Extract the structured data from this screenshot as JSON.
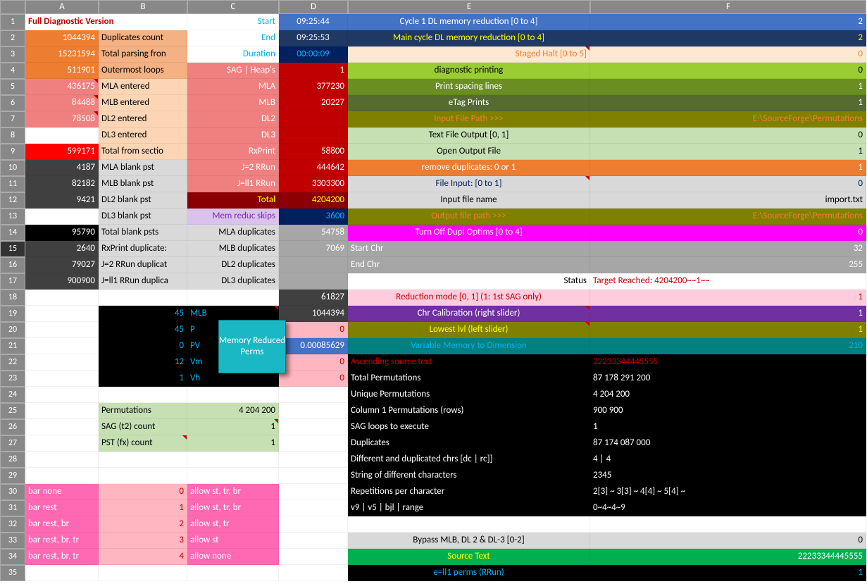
{
  "cols": [
    "",
    "A",
    "B",
    "C",
    "D",
    "E",
    "F"
  ],
  "popup": "Memory Reduced Perms",
  "colors": {
    "orange": "#ed7d31",
    "orangeLt": "#f4b183",
    "orangeTan": "#ffe8d1",
    "salmon": "#f08080",
    "salmonLt": "#fcd5b4",
    "red": "#c00000",
    "redBright": "#ff0000",
    "darkRed": "#8b0000",
    "olive": "#808000",
    "oliveLt": "#9acd32",
    "oliveMed": "#6b8e23",
    "oliveDk": "#556b2f",
    "greenLt": "#c6e0b4",
    "green": "#00b050",
    "blue": "#4472c4",
    "blueDk": "#1f3864",
    "navy": "#002060",
    "cyan": "#00b0f0",
    "teal": "#008080",
    "purple": "#7030a0",
    "purpleLt": "#d9c2ec",
    "magenta": "#ff00ff",
    "pink": "#ffb6c1",
    "pinkHot": "#ff69b4",
    "pinkLt": "#ffccdd",
    "black": "#000000",
    "grayDk": "#404040",
    "grayLt": "#d9d9d9",
    "grayMd": "#a6a6a6",
    "white": "#ffffff",
    "yellow": "#ffff00",
    "tan": "#bfbfbf"
  },
  "rows": [
    [
      {
        "t": "Full Diagnostic Version",
        "bg": "white",
        "fg": "red",
        "b": 1,
        "span": 2
      },
      null,
      {
        "t": "Start",
        "bg": "white",
        "fg": "cyan",
        "a": "r"
      },
      {
        "t": "09:25:44",
        "bg": "blue",
        "fg": "white",
        "a": "c"
      },
      {
        "t": "Cycle 1 DL memory reduction [0 to 4]",
        "bg": "blue",
        "fg": "white",
        "a": "c"
      },
      {
        "t": "2",
        "bg": "blue",
        "fg": "white",
        "a": "r"
      }
    ],
    [
      {
        "t": "1044394",
        "bg": "orange",
        "fg": "white",
        "a": "r"
      },
      {
        "t": "Duplicates count",
        "bg": "orangeLt"
      },
      {
        "t": "End",
        "bg": "white",
        "fg": "cyan",
        "a": "r"
      },
      {
        "t": "09:25:53",
        "bg": "blueDk",
        "fg": "white",
        "a": "c"
      },
      {
        "t": "Main cycle DL memory reduction [0 to 4]",
        "bg": "blueDk",
        "fg": "yellow",
        "a": "c"
      },
      {
        "t": "2",
        "bg": "blueDk",
        "fg": "yellow",
        "a": "r"
      }
    ],
    [
      {
        "t": "15231594",
        "bg": "orange",
        "fg": "white",
        "a": "r"
      },
      {
        "t": "Total parsing fron",
        "bg": "orangeLt"
      },
      {
        "t": "Duration",
        "bg": "white",
        "fg": "cyan",
        "a": "r"
      },
      {
        "t": "00:00:09",
        "bg": "navy",
        "fg": "cyan",
        "a": "c"
      },
      {
        "t": "Staged Halt [0 to 5]",
        "bg": "orangeTan",
        "fg": "orange",
        "a": "r",
        "tri": 1
      },
      {
        "t": "0",
        "bg": "orangeTan",
        "fg": "orange",
        "a": "r"
      }
    ],
    [
      {
        "t": "511901",
        "bg": "orange",
        "fg": "white",
        "a": "r"
      },
      {
        "t": "Outermost loops",
        "bg": "orangeLt"
      },
      {
        "t": "SAG | Heap's",
        "bg": "salmon",
        "fg": "white",
        "a": "r"
      },
      {
        "t": "1",
        "bg": "red",
        "fg": "white",
        "a": "r"
      },
      {
        "t": "diagnostic printing",
        "bg": "oliveLt",
        "fg": "black",
        "a": "c"
      },
      {
        "t": "0",
        "bg": "oliveLt",
        "a": "r"
      }
    ],
    [
      {
        "t": "436175",
        "bg": "salmon",
        "fg": "white",
        "a": "r",
        "tri": 1
      },
      {
        "t": "MLA entered",
        "bg": "salmonLt"
      },
      {
        "t": "MLA",
        "bg": "salmon",
        "fg": "white",
        "a": "r"
      },
      {
        "t": "377230",
        "bg": "red",
        "fg": "white",
        "a": "r"
      },
      {
        "t": "Print spacing lines",
        "bg": "oliveMed",
        "fg": "white",
        "a": "c"
      },
      {
        "t": "1",
        "bg": "oliveMed",
        "fg": "white",
        "a": "r"
      }
    ],
    [
      {
        "t": "84488",
        "bg": "salmon",
        "fg": "white",
        "a": "r",
        "tri": 1
      },
      {
        "t": "MLB  entered",
        "bg": "salmonLt"
      },
      {
        "t": "MLB",
        "bg": "salmon",
        "fg": "white",
        "a": "r"
      },
      {
        "t": "20227",
        "bg": "red",
        "fg": "white",
        "a": "r"
      },
      {
        "t": "eTag Prints",
        "bg": "oliveDk",
        "fg": "white",
        "a": "c"
      },
      {
        "t": "1",
        "bg": "oliveDk",
        "fg": "white",
        "a": "r"
      }
    ],
    [
      {
        "t": "78508",
        "bg": "salmon",
        "fg": "white",
        "a": "r",
        "tri": 1
      },
      {
        "t": "DL2  entered",
        "bg": "salmonLt"
      },
      {
        "t": "DL2",
        "bg": "salmon",
        "fg": "white",
        "a": "r"
      },
      {
        "t": "",
        "bg": "red"
      },
      {
        "t": "Input File Path   >>>",
        "bg": "olive",
        "fg": "orange",
        "a": "c"
      },
      {
        "t": "E:\\SourceForge\\Permutations",
        "bg": "olive",
        "fg": "orange",
        "a": "r"
      }
    ],
    [
      {
        "t": "",
        "bg": "white"
      },
      {
        "t": "DL3  entered",
        "bg": "salmonLt"
      },
      {
        "t": "DL3",
        "bg": "salmon",
        "fg": "white",
        "a": "r"
      },
      {
        "t": "",
        "bg": "red"
      },
      {
        "t": "Text File Output [0, 1]",
        "bg": "greenLt",
        "a": "c"
      },
      {
        "t": "0",
        "bg": "greenLt",
        "a": "r"
      }
    ],
    [
      {
        "t": "599171",
        "bg": "redBright",
        "fg": "white",
        "a": "r"
      },
      {
        "t": "Total from sectio",
        "bg": "salmonLt"
      },
      {
        "t": "RxPrint",
        "bg": "salmon",
        "fg": "white",
        "a": "r"
      },
      {
        "t": "58800",
        "bg": "red",
        "fg": "white",
        "a": "r"
      },
      {
        "t": "Open Output File",
        "bg": "greenLt",
        "a": "c"
      },
      {
        "t": "1",
        "bg": "greenLt",
        "a": "r"
      }
    ],
    [
      {
        "t": "4187",
        "bg": "grayDk",
        "fg": "white",
        "a": "r"
      },
      {
        "t": "MLA blank pst",
        "bg": "grayLt"
      },
      {
        "t": "J=2 RRun",
        "bg": "salmon",
        "fg": "white",
        "a": "r"
      },
      {
        "t": "444642",
        "bg": "red",
        "fg": "white",
        "a": "r"
      },
      {
        "t": "remove duplicates: 0 or 1",
        "bg": "orange",
        "fg": "white",
        "a": "c"
      },
      {
        "t": "1",
        "bg": "orange",
        "fg": "white",
        "a": "r"
      }
    ],
    [
      {
        "t": "82182",
        "bg": "grayDk",
        "fg": "white",
        "a": "r"
      },
      {
        "t": "MLB blank pst",
        "bg": "grayLt"
      },
      {
        "t": "J=ll1 RRun",
        "bg": "salmon",
        "fg": "white",
        "a": "r"
      },
      {
        "t": "3303300",
        "bg": "red",
        "fg": "white",
        "a": "r"
      },
      {
        "t": "File Input: [0 to 1]",
        "bg": "grayLt",
        "fg": "navy",
        "a": "c",
        "tri": 1
      },
      {
        "t": "0",
        "bg": "grayLt",
        "fg": "navy",
        "a": "r"
      }
    ],
    [
      {
        "t": "9421",
        "bg": "grayDk",
        "fg": "white",
        "a": "r"
      },
      {
        "t": "DL2 blank pst",
        "bg": "grayLt"
      },
      {
        "t": "Total",
        "bg": "darkRed",
        "fg": "yellow",
        "a": "r"
      },
      {
        "t": "4204200",
        "bg": "darkRed",
        "fg": "yellow",
        "a": "r"
      },
      {
        "t": "Input file name",
        "bg": "grayLt",
        "a": "c"
      },
      {
        "t": "import.txt",
        "bg": "grayLt",
        "a": "r"
      }
    ],
    [
      {
        "t": "",
        "bg": "white"
      },
      {
        "t": "DL3 blank pst",
        "bg": "grayLt"
      },
      {
        "t": "Mem reduc skips",
        "bg": "purpleLt",
        "fg": "purple",
        "a": "r"
      },
      {
        "t": "3600",
        "bg": "navy",
        "fg": "cyan",
        "a": "r"
      },
      {
        "t": "Output file path  >>>",
        "bg": "olive",
        "fg": "orange",
        "a": "c"
      },
      {
        "t": "E:\\SourceForge\\Permutations",
        "bg": "olive",
        "fg": "orange",
        "a": "r"
      }
    ],
    [
      {
        "t": "95790",
        "bg": "black",
        "fg": "white",
        "a": "r"
      },
      {
        "t": "Total blank psts",
        "bg": "grayLt"
      },
      {
        "t": "MLA duplicates",
        "bg": "grayLt",
        "a": "r"
      },
      {
        "t": "54758",
        "bg": "grayMd",
        "fg": "white",
        "a": "r"
      },
      {
        "t": "Turn Off Dupl Optims [0 to 4]",
        "bg": "magenta",
        "fg": "white",
        "a": "c"
      },
      {
        "t": "0",
        "bg": "magenta",
        "fg": "white",
        "a": "r"
      }
    ],
    [
      {
        "t": "2640",
        "bg": "grayDk",
        "fg": "white",
        "a": "r"
      },
      {
        "t": "RxPrint duplicate:",
        "bg": "grayLt"
      },
      {
        "t": "MLB duplicates",
        "bg": "grayLt",
        "a": "r"
      },
      {
        "t": "7069",
        "bg": "grayMd",
        "fg": "white",
        "a": "r"
      },
      {
        "t": "Start Chr",
        "bg": "grayMd",
        "fg": "white"
      },
      {
        "t": "32",
        "bg": "grayMd",
        "fg": "white",
        "a": "r"
      }
    ],
    [
      {
        "t": "79027",
        "bg": "grayDk",
        "fg": "white",
        "a": "r"
      },
      {
        "t": "J=2 RRun duplicat",
        "bg": "grayLt"
      },
      {
        "t": "DL2 duplicates",
        "bg": "grayLt",
        "a": "r"
      },
      {
        "t": "",
        "bg": "grayMd"
      },
      {
        "t": "End Chr",
        "bg": "grayMd",
        "fg": "white"
      },
      {
        "t": "255",
        "bg": "grayMd",
        "fg": "white",
        "a": "r"
      }
    ],
    [
      {
        "t": "900900",
        "bg": "grayDk",
        "fg": "white",
        "a": "r"
      },
      {
        "t": "J=ll1 RRun duplica",
        "bg": "grayLt"
      },
      {
        "t": "DL3 duplicates",
        "bg": "grayLt",
        "a": "r"
      },
      {
        "t": "",
        "bg": "grayMd"
      },
      {
        "t": "Status",
        "bg": "white",
        "a": "r"
      },
      {
        "t": "Target Reached:  4204200~~1~~",
        "bg": "white",
        "fg": "red"
      }
    ],
    [
      {
        "t": ""
      },
      {
        "t": ""
      },
      {
        "t": ""
      },
      {
        "t": "61827",
        "bg": "grayDk",
        "fg": "white",
        "a": "r"
      },
      {
        "t": "Reduction mode [0, 1] (1: 1st SAG only)",
        "bg": "pinkLt",
        "fg": "red",
        "a": "c"
      },
      {
        "t": "1",
        "bg": "pinkLt",
        "fg": "red",
        "a": "r"
      }
    ],
    [
      {
        "t": ""
      },
      {
        "t": "45",
        "bg": "black",
        "fg": "cyan",
        "a": "r"
      },
      {
        "t": "MLB",
        "bg": "black",
        "fg": "cyan",
        "tri": 1
      },
      {
        "t": "1044394",
        "bg": "grayDk",
        "fg": "white",
        "a": "r"
      },
      {
        "t": "Chr Calibration (right slider)",
        "bg": "purple",
        "fg": "white",
        "a": "c",
        "tri": 1
      },
      {
        "t": "1",
        "bg": "purple",
        "fg": "white",
        "a": "r"
      }
    ],
    [
      {
        "t": ""
      },
      {
        "t": "45",
        "bg": "black",
        "fg": "cyan",
        "a": "r"
      },
      {
        "t": "P",
        "bg": "black",
        "fg": "cyan",
        "tri": 1
      },
      {
        "t": "0",
        "bg": "pink",
        "fg": "red",
        "a": "r"
      },
      {
        "t": "Lowest lvl (left slider)",
        "bg": "olive",
        "fg": "yellow",
        "a": "c",
        "tri": 1
      },
      {
        "t": "1",
        "bg": "olive",
        "fg": "yellow",
        "a": "r"
      }
    ],
    [
      {
        "t": ""
      },
      {
        "t": "0",
        "bg": "black",
        "fg": "cyan",
        "a": "r"
      },
      {
        "t": "PV",
        "bg": "black",
        "fg": "cyan"
      },
      {
        "t": "0.00085629",
        "bg": "blue",
        "fg": "white",
        "a": "r"
      },
      {
        "t": "Variable Memory to Dimension",
        "bg": "teal",
        "fg": "cyan",
        "a": "c"
      },
      {
        "t": "210",
        "bg": "teal",
        "fg": "cyan",
        "a": "r"
      }
    ],
    [
      {
        "t": ""
      },
      {
        "t": "12",
        "bg": "black",
        "fg": "cyan",
        "a": "r"
      },
      {
        "t": "Vm",
        "bg": "black",
        "fg": "cyan"
      },
      {
        "t": "0",
        "bg": "pink",
        "fg": "red",
        "a": "r"
      },
      {
        "t": "Ascending source text",
        "bg": "black",
        "fg": "red"
      },
      {
        "t": "22233344445555",
        "bg": "black",
        "fg": "red"
      }
    ],
    [
      {
        "t": ""
      },
      {
        "t": "1",
        "bg": "black",
        "fg": "cyan",
        "a": "r"
      },
      {
        "t": "Vh",
        "bg": "black",
        "fg": "cyan"
      },
      {
        "t": "0",
        "bg": "pink",
        "fg": "red",
        "a": "r"
      },
      {
        "t": "Total Permutations",
        "bg": "black",
        "fg": "white"
      },
      {
        "t": "87 178 291 200",
        "bg": "black",
        "fg": "white"
      }
    ],
    [
      {
        "t": ""
      },
      {
        "t": ""
      },
      {
        "t": ""
      },
      {
        "t": ""
      },
      {
        "t": "Unique Permutations",
        "bg": "black",
        "fg": "white"
      },
      {
        "t": "4 204 200",
        "bg": "black",
        "fg": "white"
      }
    ],
    [
      {
        "t": ""
      },
      {
        "t": "Permutations",
        "bg": "greenLt"
      },
      {
        "t": "4 204 200",
        "bg": "greenLt",
        "a": "r"
      },
      {
        "t": ""
      },
      {
        "t": "Column 1 Permutations (rows)",
        "bg": "black",
        "fg": "white"
      },
      {
        "t": "900 900",
        "bg": "black",
        "fg": "white"
      }
    ],
    [
      {
        "t": ""
      },
      {
        "t": "SAG (t2) count",
        "bg": "greenLt"
      },
      {
        "t": "1",
        "bg": "greenLt",
        "a": "r",
        "tri": 1
      },
      {
        "t": ""
      },
      {
        "t": "SAG loops to execute",
        "bg": "black",
        "fg": "white"
      },
      {
        "t": "1",
        "bg": "black",
        "fg": "white"
      }
    ],
    [
      {
        "t": ""
      },
      {
        "t": "PST (fx) count",
        "bg": "greenLt",
        "tri": 1
      },
      {
        "t": "1",
        "bg": "greenLt",
        "a": "r"
      },
      {
        "t": ""
      },
      {
        "t": "Duplicates",
        "bg": "black",
        "fg": "white"
      },
      {
        "t": "87 174 087 000",
        "bg": "black",
        "fg": "white"
      }
    ],
    [
      {
        "t": ""
      },
      {
        "t": ""
      },
      {
        "t": ""
      },
      {
        "t": ""
      },
      {
        "t": "Different and duplicated chrs [dc | rc]]",
        "bg": "black",
        "fg": "white"
      },
      {
        "t": "4 | 4",
        "bg": "black",
        "fg": "white"
      }
    ],
    [
      {
        "t": ""
      },
      {
        "t": ""
      },
      {
        "t": ""
      },
      {
        "t": ""
      },
      {
        "t": "String of different characters",
        "bg": "black",
        "fg": "white"
      },
      {
        "t": "2345",
        "bg": "black",
        "fg": "white"
      }
    ],
    [
      {
        "t": "bar none",
        "bg": "pinkHot",
        "fg": "white"
      },
      {
        "t": "0",
        "bg": "pink",
        "fg": "red",
        "a": "r"
      },
      {
        "t": "allow st, tr, br",
        "bg": "pinkHot",
        "fg": "white"
      },
      {
        "t": ""
      },
      {
        "t": "Repetitions per character",
        "bg": "black",
        "fg": "white"
      },
      {
        "t": "2[3] ~ 3[3] ~ 4[4] ~ 5[4] ~",
        "bg": "black",
        "fg": "white"
      }
    ],
    [
      {
        "t": "bar rest",
        "bg": "pinkHot",
        "fg": "white"
      },
      {
        "t": "1",
        "bg": "pink",
        "fg": "red",
        "a": "r"
      },
      {
        "t": "allow st, tr, br",
        "bg": "pinkHot",
        "fg": "white"
      },
      {
        "t": ""
      },
      {
        "t": "v9 | v5 | bjl | range",
        "bg": "black",
        "fg": "white"
      },
      {
        "t": "0~4~4~9",
        "bg": "black",
        "fg": "white"
      }
    ],
    [
      {
        "t": "bar rest, br",
        "bg": "pinkHot",
        "fg": "white"
      },
      {
        "t": "2",
        "bg": "pink",
        "fg": "red",
        "a": "r"
      },
      {
        "t": "allow st, tr",
        "bg": "pinkHot",
        "fg": "white"
      },
      {
        "t": ""
      },
      {
        "t": ""
      },
      {
        "t": ""
      }
    ],
    [
      {
        "t": "bar rest, br, tr",
        "bg": "pinkHot",
        "fg": "white"
      },
      {
        "t": "3",
        "bg": "pink",
        "fg": "red",
        "a": "r"
      },
      {
        "t": "allow st",
        "bg": "pinkHot",
        "fg": "white"
      },
      {
        "t": ""
      },
      {
        "t": "Bypass MLB, DL 2 & DL-3 [0-2]",
        "bg": "grayLt",
        "a": "c"
      },
      {
        "t": "0",
        "bg": "grayLt",
        "a": "r"
      }
    ],
    [
      {
        "t": "bar rest, br, tr",
        "bg": "pinkHot",
        "fg": "white"
      },
      {
        "t": "4",
        "bg": "pink",
        "fg": "red",
        "a": "r"
      },
      {
        "t": "allow none",
        "bg": "pinkHot",
        "fg": "white"
      },
      {
        "t": ""
      },
      {
        "t": "Source Text",
        "bg": "green",
        "fg": "yellow",
        "a": "c"
      },
      {
        "t": "22233344445555",
        "bg": "green",
        "fg": "white",
        "a": "r"
      }
    ],
    [
      {
        "t": ""
      },
      {
        "t": ""
      },
      {
        "t": ""
      },
      {
        "t": ""
      },
      {
        "t": "e=ll1 perms (RRun)",
        "bg": "black",
        "fg": "cyan",
        "a": "c"
      },
      {
        "t": "1",
        "bg": "black",
        "fg": "cyan",
        "a": "r"
      }
    ]
  ]
}
